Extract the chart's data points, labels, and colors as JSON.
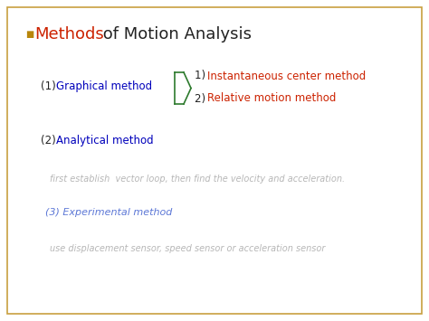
{
  "background_color": "#ffffff",
  "border_color": "#c8a040",
  "title_red": "Methods",
  "title_black": " of Motion Analysis",
  "title_red_color": "#cc2200",
  "title_black_color": "#222222",
  "bullet_color": "#b8860b",
  "item1_black": "(1) ",
  "item1_text": "Graphical method",
  "item1_text_color": "#0000bb",
  "brace_color": "#2d7a2d",
  "sub1_num": "1) ",
  "sub1_text": "Instantaneous center method",
  "sub1_color": "#cc2200",
  "sub2_num": "2) ",
  "sub2_text": "Relative motion method",
  "sub2_color": "#cc2200",
  "item2_black": "(2) ",
  "item2_text": "Analytical method",
  "item2_color": "#0000bb",
  "blurred1": "first establish  vector loop, then find the velocity and acceleration.",
  "blurred1_color": "#aaaaaa",
  "item3_text": "(3) Experimental method",
  "item3_color": "#3355cc",
  "blurred2": "use displacement sensor, speed sensor or acceleration sensor",
  "blurred2_color": "#aaaaaa",
  "title_fontsize": 13,
  "body_fontsize": 8.5,
  "sub_fontsize": 8.5,
  "blur_fontsize": 7.0
}
